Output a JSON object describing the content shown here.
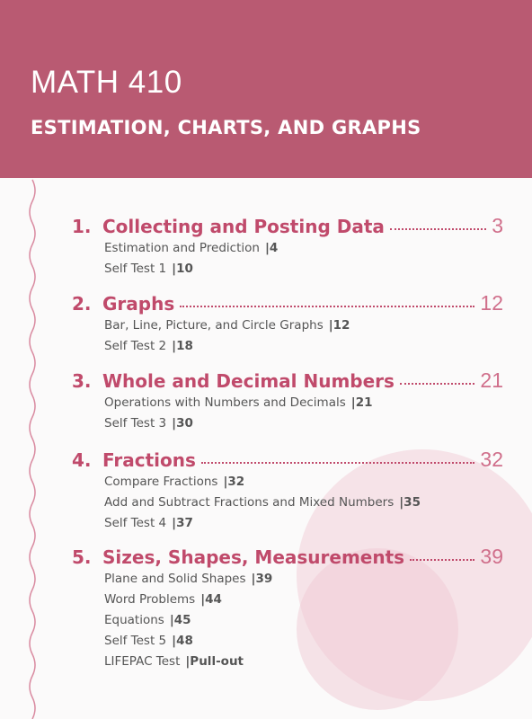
{
  "header": {
    "title": "MATH 410",
    "subtitle": "ESTIMATION, CHARTS, AND GRAPHS"
  },
  "sections": [
    {
      "number": "1.",
      "title": "Collecting and Posting Data",
      "page": "3",
      "items": [
        {
          "text": "Estimation and Prediction",
          "page": "|4"
        },
        {
          "text": "Self Test 1",
          "page": "|10"
        }
      ]
    },
    {
      "number": "2.",
      "title": "Graphs",
      "page": "12",
      "items": [
        {
          "text": "Bar, Line, Picture, and Circle Graphs",
          "page": "|12"
        },
        {
          "text": "Self Test 2",
          "page": "|18"
        }
      ]
    },
    {
      "number": "3.",
      "title": "Whole and Decimal Numbers",
      "page": "21",
      "items": [
        {
          "text": "Operations with Numbers and Decimals",
          "page": "|21"
        },
        {
          "text": "Self Test 3",
          "page": "|30"
        }
      ]
    },
    {
      "number": "4.",
      "title": "Fractions",
      "page": "32",
      "items": [
        {
          "text": "Compare Fractions",
          "page": "|32"
        },
        {
          "text": "Add and Subtract Fractions and Mixed Numbers",
          "page": "|35"
        },
        {
          "text": "Self Test 4",
          "page": "|37"
        }
      ]
    },
    {
      "number": "5.",
      "title": "Sizes, Shapes, Measurements",
      "page": "39",
      "items": [
        {
          "text": "Plane and Solid Shapes",
          "page": "|39"
        },
        {
          "text": "Word Problems",
          "page": "|44"
        },
        {
          "text": "Equations",
          "page": "|45"
        },
        {
          "text": "Self Test 5",
          "page": "|48"
        },
        {
          "text": "LIFEPAC Test",
          "page": "|Pull-out"
        }
      ]
    }
  ]
}
